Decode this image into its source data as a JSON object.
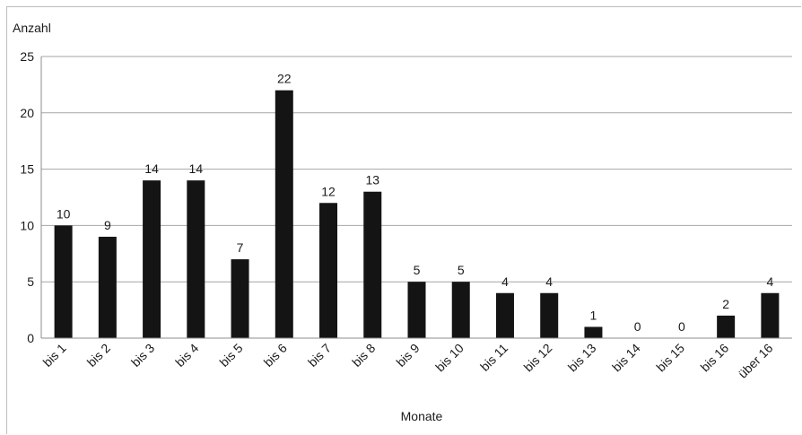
{
  "chart_data": {
    "type": "bar",
    "title": "",
    "ylabel": "Anzahl",
    "xlabel": "Monate",
    "categories": [
      "bis 1",
      "bis 2",
      "bis 3",
      "bis 4",
      "bis 5",
      "bis 6",
      "bis 7",
      "bis 8",
      "bis 9",
      "bis 10",
      "bis 11",
      "bis 12",
      "bis 13",
      "bis 14",
      "bis 15",
      "bis 16",
      "über 16"
    ],
    "values": [
      10,
      9,
      14,
      14,
      7,
      22,
      12,
      13,
      5,
      5,
      4,
      4,
      1,
      0,
      0,
      2,
      4
    ],
    "ylim": [
      0,
      25
    ],
    "yticks": [
      0,
      5,
      10,
      15,
      20,
      25
    ],
    "grid": true,
    "bar_color": "#141414",
    "grid_color": "#a6a6a6"
  }
}
